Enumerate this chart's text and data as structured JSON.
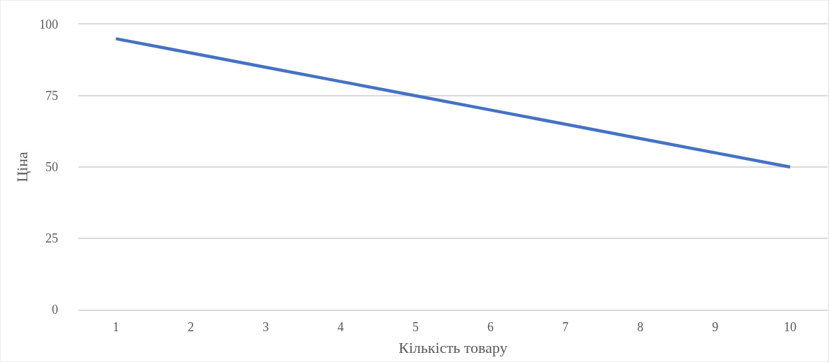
{
  "chart_data": {
    "type": "line",
    "xlabel": "Кількість товару",
    "ylabel": "Ціна",
    "categories": [
      "1",
      "2",
      "3",
      "4",
      "5",
      "6",
      "7",
      "8",
      "9",
      "10"
    ],
    "series": [
      {
        "color": "#4472c4",
        "values": [
          95,
          90,
          85,
          80,
          75,
          70,
          65,
          60,
          55,
          50
        ]
      }
    ],
    "ylim": [
      0,
      100
    ],
    "yticks": [
      0,
      25,
      50,
      75,
      100
    ],
    "grid": "y",
    "marker": "none",
    "line_style": "solid"
  }
}
